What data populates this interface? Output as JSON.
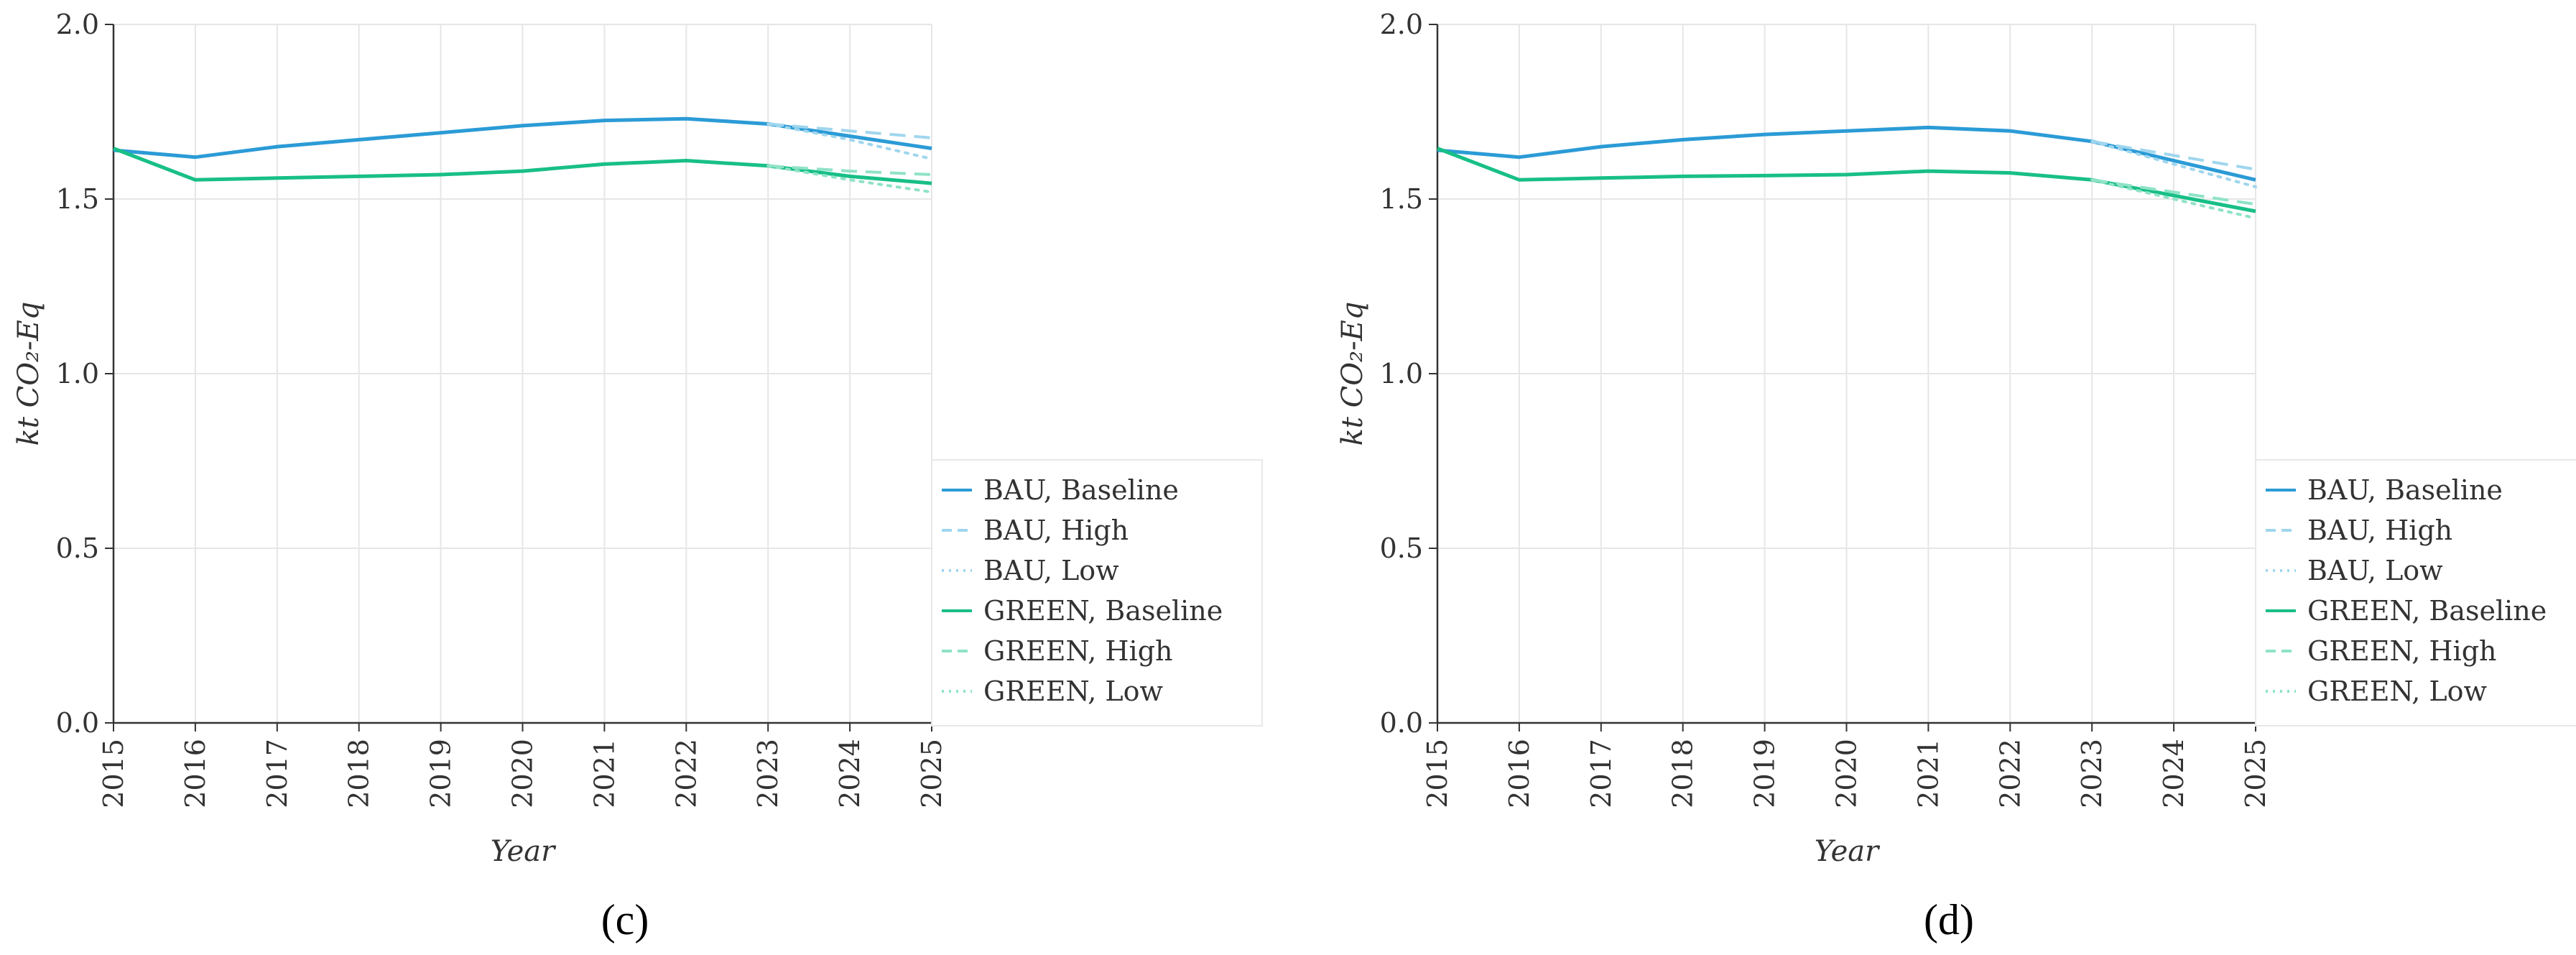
{
  "chart_data": [
    {
      "panel": "(c)",
      "type": "line",
      "ylabel": "kt CO₂-Eq",
      "xlabel": "Year",
      "ylim": [
        0,
        2
      ],
      "yticks": [
        "0.0",
        "0.5",
        "1.0",
        "1.5",
        "2.0"
      ],
      "x": [
        2015,
        2016,
        2017,
        2018,
        2019,
        2020,
        2021,
        2022,
        2023,
        2024,
        2025
      ],
      "xticks": [
        "2015",
        "2016",
        "2017",
        "2018",
        "2019",
        "2020",
        "2021",
        "2022",
        "2023",
        "2024",
        "2025"
      ],
      "grid": true,
      "legend_position": "right",
      "series": [
        {
          "name": "BAU, Baseline",
          "color": "#2b9bd6",
          "dash": "solid",
          "x": [
            2015,
            2016,
            2017,
            2018,
            2019,
            2020,
            2021,
            2022,
            2023,
            2024,
            2025
          ],
          "values": [
            1.64,
            1.62,
            1.65,
            1.67,
            1.69,
            1.71,
            1.725,
            1.73,
            1.715,
            1.68,
            1.645
          ]
        },
        {
          "name": "BAU, High",
          "color": "#9fd6ee",
          "dash": "dashed",
          "x": [
            2023,
            2024,
            2025
          ],
          "values": [
            1.715,
            1.695,
            1.675
          ]
        },
        {
          "name": "BAU, Low",
          "color": "#9fd6ee",
          "dash": "dotted",
          "x": [
            2023,
            2024,
            2025
          ],
          "values": [
            1.715,
            1.67,
            1.615
          ]
        },
        {
          "name": "GREEN, Baseline",
          "color": "#18bf86",
          "dash": "solid",
          "x": [
            2015,
            2016,
            2017,
            2018,
            2019,
            2020,
            2021,
            2022,
            2023,
            2024,
            2025
          ],
          "values": [
            1.645,
            1.555,
            1.56,
            1.565,
            1.57,
            1.58,
            1.6,
            1.61,
            1.595,
            1.565,
            1.545
          ]
        },
        {
          "name": "GREEN, High",
          "color": "#8fe2c8",
          "dash": "dashed",
          "x": [
            2023,
            2024,
            2025
          ],
          "values": [
            1.595,
            1.58,
            1.57
          ]
        },
        {
          "name": "GREEN, Low",
          "color": "#8fe2c8",
          "dash": "dotted",
          "x": [
            2023,
            2024,
            2025
          ],
          "values": [
            1.595,
            1.555,
            1.52
          ]
        }
      ]
    },
    {
      "panel": "(d)",
      "type": "line",
      "ylabel": "kt CO₂-Eq",
      "xlabel": "Year",
      "ylim": [
        0,
        2
      ],
      "yticks": [
        "0.0",
        "0.5",
        "1.0",
        "1.5",
        "2.0"
      ],
      "x": [
        2015,
        2016,
        2017,
        2018,
        2019,
        2020,
        2021,
        2022,
        2023,
        2024,
        2025
      ],
      "xticks": [
        "2015",
        "2016",
        "2017",
        "2018",
        "2019",
        "2020",
        "2021",
        "2022",
        "2023",
        "2024",
        "2025"
      ],
      "grid": true,
      "legend_position": "right",
      "series": [
        {
          "name": "BAU, Baseline",
          "color": "#2b9bd6",
          "dash": "solid",
          "x": [
            2015,
            2016,
            2017,
            2018,
            2019,
            2020,
            2021,
            2022,
            2023,
            2024,
            2025
          ],
          "values": [
            1.64,
            1.62,
            1.65,
            1.67,
            1.685,
            1.695,
            1.705,
            1.695,
            1.665,
            1.61,
            1.555
          ]
        },
        {
          "name": "BAU, High",
          "color": "#9fd6ee",
          "dash": "dashed",
          "x": [
            2023,
            2024,
            2025
          ],
          "values": [
            1.665,
            1.625,
            1.585
          ]
        },
        {
          "name": "BAU, Low",
          "color": "#9fd6ee",
          "dash": "dotted",
          "x": [
            2023,
            2024,
            2025
          ],
          "values": [
            1.665,
            1.6,
            1.535
          ]
        },
        {
          "name": "GREEN, Baseline",
          "color": "#18bf86",
          "dash": "solid",
          "x": [
            2015,
            2016,
            2017,
            2018,
            2019,
            2020,
            2021,
            2022,
            2023,
            2024,
            2025
          ],
          "values": [
            1.645,
            1.555,
            1.56,
            1.565,
            1.567,
            1.57,
            1.58,
            1.575,
            1.555,
            1.51,
            1.465
          ]
        },
        {
          "name": "GREEN, High",
          "color": "#8fe2c8",
          "dash": "dashed",
          "x": [
            2023,
            2024,
            2025
          ],
          "values": [
            1.555,
            1.52,
            1.485
          ]
        },
        {
          "name": "GREEN, Low",
          "color": "#8fe2c8",
          "dash": "dotted",
          "x": [
            2023,
            2024,
            2025
          ],
          "values": [
            1.555,
            1.5,
            1.445
          ]
        }
      ]
    }
  ]
}
